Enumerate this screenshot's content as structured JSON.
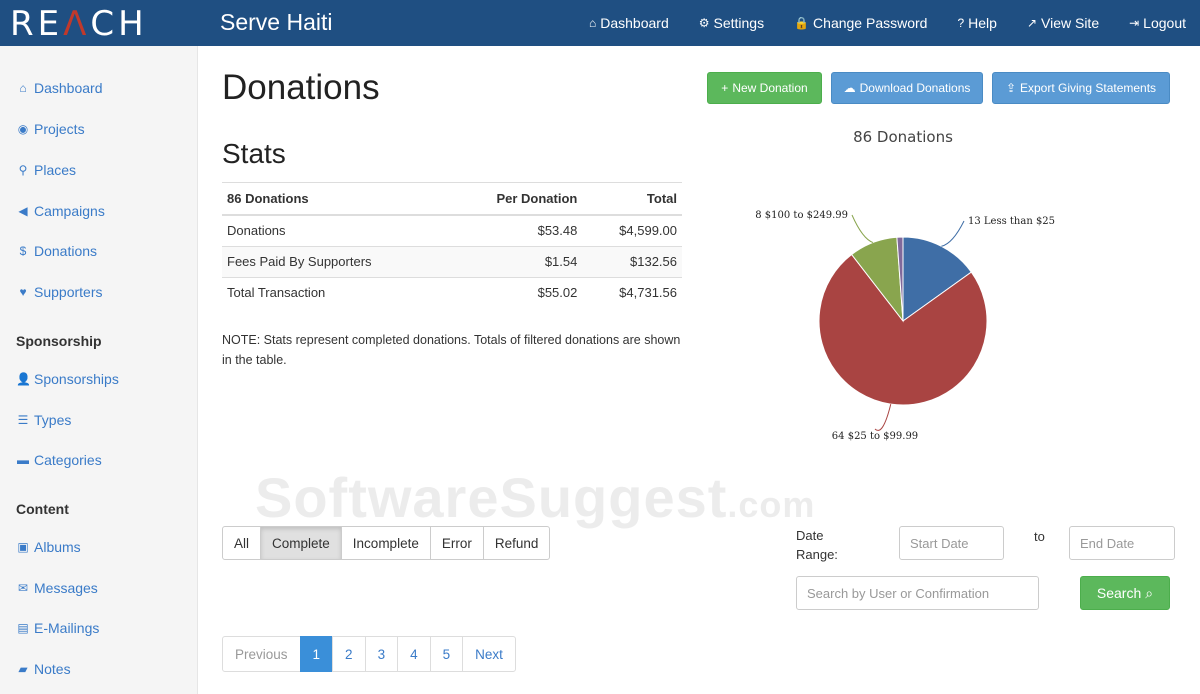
{
  "header": {
    "logo": "REACH",
    "org_name": "Serve Haiti",
    "nav": [
      {
        "label": "Dashboard",
        "icon": "home-icon",
        "glyph": "⌂"
      },
      {
        "label": "Settings",
        "icon": "gear-icon",
        "glyph": "⚙"
      },
      {
        "label": "Change Password",
        "icon": "lock-icon",
        "glyph": "🔒"
      },
      {
        "label": "Help",
        "icon": "help-icon",
        "glyph": "?"
      },
      {
        "label": "View Site",
        "icon": "external-link-icon",
        "glyph": "↗"
      },
      {
        "label": "Logout",
        "icon": "logout-icon",
        "glyph": "⇥"
      }
    ]
  },
  "sidebar": {
    "items": [
      {
        "label": "Dashboard",
        "icon": "home-icon",
        "glyph": "⌂"
      },
      {
        "label": "Projects",
        "icon": "globe-icon",
        "glyph": "◉"
      },
      {
        "label": "Places",
        "icon": "map-marker-icon",
        "glyph": "⚲"
      },
      {
        "label": "Campaigns",
        "icon": "bullhorn-icon",
        "glyph": "◀"
      },
      {
        "label": "Donations",
        "icon": "dollar-icon",
        "glyph": "$"
      },
      {
        "label": "Supporters",
        "icon": "heart-icon",
        "glyph": "♥"
      }
    ],
    "sponsorship_heading": "Sponsorship",
    "sponsorship_items": [
      {
        "label": "Sponsorships",
        "icon": "user-icon",
        "glyph": "👤"
      },
      {
        "label": "Types",
        "icon": "list-icon",
        "glyph": "☰"
      },
      {
        "label": "Categories",
        "icon": "folder-icon",
        "glyph": "▬"
      }
    ],
    "content_heading": "Content",
    "content_items": [
      {
        "label": "Albums",
        "icon": "picture-icon",
        "glyph": "▣"
      },
      {
        "label": "Messages",
        "icon": "envelope-icon",
        "glyph": "✉"
      },
      {
        "label": "E-Mailings",
        "icon": "mailing-icon",
        "glyph": "▤"
      },
      {
        "label": "Notes",
        "icon": "comment-icon",
        "glyph": "▰"
      }
    ]
  },
  "main": {
    "title": "Donations",
    "buttons": {
      "new_donation": "New Donation",
      "download_donations": "Download Donations",
      "export_statements": "Export Giving Statements"
    },
    "stats_title": "Stats",
    "stats_table": {
      "headers": [
        "86 Donations",
        "Per Donation",
        "Total"
      ],
      "rows": [
        [
          "Donations",
          "$53.48",
          "$4,599.00"
        ],
        [
          "Fees Paid By Supporters",
          "$1.54",
          "$132.56"
        ],
        [
          "Total Transaction",
          "$55.02",
          "$4,731.56"
        ]
      ]
    },
    "note": "NOTE: Stats represent completed donations. Totals of filtered donations are shown in the table.",
    "filters": [
      "All",
      "Complete",
      "Incomplete",
      "Error",
      "Refund"
    ],
    "active_filter": "Complete",
    "date_range_label": "Date Range:",
    "start_date_placeholder": "Start Date",
    "to_label": "to",
    "end_date_placeholder": "End Date",
    "search_placeholder": "Search by User or Confirmation",
    "search_button": "Search",
    "pagination": [
      "Previous",
      "1",
      "2",
      "3",
      "4",
      "5",
      "Next"
    ],
    "active_page": "1"
  },
  "chart_data": {
    "type": "pie",
    "title": "86 Donations",
    "slices": [
      {
        "label": "13 Less than $25",
        "value": 13,
        "color": "#3f6ea6"
      },
      {
        "label": "64 $25 to $99.99",
        "value": 64,
        "color": "#a94442"
      },
      {
        "label": "8 $100 to $249.99",
        "value": 8,
        "color": "#89a54e"
      },
      {
        "label": "",
        "value": 1,
        "color": "#80699b"
      }
    ]
  },
  "watermark": {
    "main": "SoftwareSuggest",
    "suffix": ".com"
  }
}
